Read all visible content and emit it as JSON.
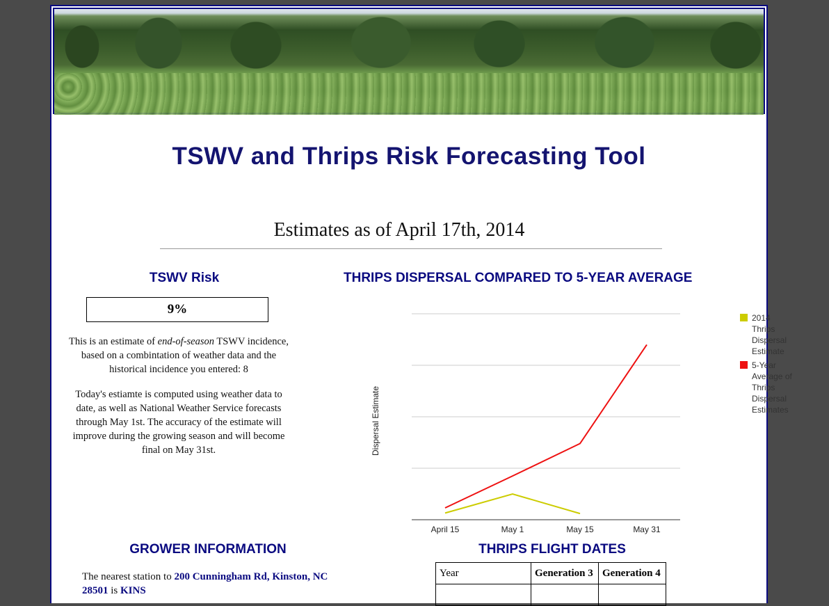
{
  "header": {
    "app_title": "TSWV and Thrips Risk Forecasting Tool",
    "estimate_heading": "Estimates as of April 17th, 2014"
  },
  "tswv": {
    "heading": "TSWV Risk",
    "value": "9%",
    "para1_prefix": "This is an estimate of ",
    "para1_em": "end-of-season",
    "para1_suffix": " TSWV incidence, based on a combintation of weather data and the historical incidence you entered: 8",
    "para2": "Today's estiamte is computed using weather data to date, as well as National Weather Service forecasts through May 1st. The accuracy of the estimate will improve during the growing season and will become final on May 31st."
  },
  "chart_heading": "THRIPS DISPERSAL COMPARED TO 5-YEAR AVERAGE",
  "chart_data": {
    "type": "line",
    "categories": [
      "April 15",
      "May 1",
      "May 15",
      "May 31"
    ],
    "ylabel": "Dispersal Estimate",
    "xlabel": "",
    "grid": true,
    "legend_position": "right",
    "ylim": [
      0,
      4
    ],
    "series": [
      {
        "name": "2014 Thrips Dispersal Estimate",
        "color": "#cccc00",
        "values": [
          0.13,
          0.5,
          0.12,
          null
        ]
      },
      {
        "name": "5-Year Average of Thrips Dispersal Estimates",
        "color": "#ee1111",
        "values": [
          0.23,
          0.85,
          1.48,
          3.4
        ]
      }
    ]
  },
  "grower": {
    "heading": "GROWER INFORMATION",
    "text_prefix": "The nearest station to ",
    "address": "200 Cunningham Rd, Kinston, NC 28501",
    "text_mid": " is ",
    "station": "KINS"
  },
  "flight": {
    "heading": "THRIPS FLIGHT DATES",
    "columns": [
      "Year",
      "Generation 3",
      "Generation 4"
    ]
  },
  "colors": {
    "accent": "#0a0a80",
    "background": "#4a4a4a"
  }
}
